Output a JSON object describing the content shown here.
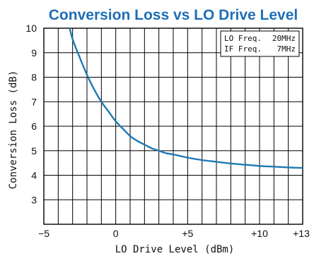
{
  "chart_data": {
    "type": "line",
    "title": "Conversion Loss vs LO Drive Level",
    "xlabel": "LO Drive Level (dBm)",
    "ylabel": "Conversion Loss (dB)",
    "xlim": [
      -5,
      13
    ],
    "ylim": [
      2,
      10
    ],
    "x_tick_labels": [
      "−5",
      "0",
      "+5",
      "+10",
      "+13"
    ],
    "y_tick_labels": [
      "3",
      "4",
      "5",
      "6",
      "7",
      "8",
      "9",
      "10"
    ],
    "grid": true,
    "legend": {
      "placement": "top-right",
      "rows": [
        {
          "label": "LO Freq.",
          "value": "20MHz"
        },
        {
          "label": "IF Freq.",
          "value": "7MHz"
        }
      ]
    },
    "series": [
      {
        "color": "#1f78b4",
        "x": [
          -3.2,
          -3.0,
          -2.5,
          -2.0,
          -1.5,
          -1.0,
          -0.5,
          0.0,
          0.5,
          1.0,
          1.5,
          2.0,
          2.5,
          3.0,
          3.5,
          4.0,
          5.0,
          6.0,
          7.0,
          8.0,
          9.0,
          10.0,
          11.0,
          12.0,
          13.0
        ],
        "y": [
          10.0,
          9.55,
          8.8,
          8.1,
          7.5,
          7.0,
          6.6,
          6.2,
          5.9,
          5.6,
          5.4,
          5.25,
          5.1,
          5.0,
          4.9,
          4.85,
          4.72,
          4.62,
          4.55,
          4.48,
          4.43,
          4.38,
          4.35,
          4.32,
          4.3
        ]
      }
    ]
  }
}
